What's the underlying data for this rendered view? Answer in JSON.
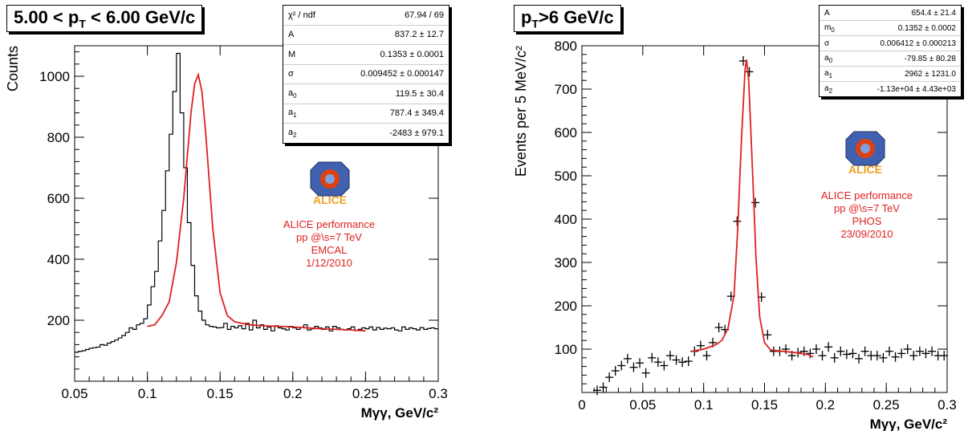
{
  "colors": {
    "hist": "#000000",
    "fit": "#e02020",
    "perf_text": "#e02020",
    "alice_logo": "#f0a020"
  },
  "left_panel": {
    "title_prefix": "5.00 < p",
    "title_sub": "T",
    "title_suffix": " < 6.00 GeV/c",
    "stats": [
      {
        "k": "χ² / ndf",
        "v": "67.94 / 69"
      },
      {
        "k": "A",
        "v": "837.2 ± 12.7"
      },
      {
        "k": "M",
        "v": "0.1353 ± 0.0001"
      },
      {
        "k": "σ",
        "v": "0.009452 ± 0.000147"
      },
      {
        "k": "a",
        "ks": "0",
        "v": "119.5 ± 30.4"
      },
      {
        "k": "a",
        "ks": "1",
        "v": "787.4 ± 349.4"
      },
      {
        "k": "a",
        "ks": "2",
        "v": "-2483 ± 979.1"
      }
    ],
    "logo_text": "ALICE",
    "perf": [
      "ALICE performance",
      "pp @\\s=7 TeV",
      "EMCAL",
      "1/12/2010"
    ]
  },
  "right_panel": {
    "title_prefix": "p",
    "title_sub": "T",
    "title_suffix": ">6 GeV/c",
    "stats": [
      {
        "k": "A",
        "v": "654.4 ± 21.4"
      },
      {
        "k": "m",
        "ks": "0",
        "v": "0.1352 ± 0.0002"
      },
      {
        "k": "σ",
        "v": "0.006412 ± 0.000213"
      },
      {
        "k": "a",
        "ks": "0",
        "v": "-79.85 ± 80.28"
      },
      {
        "k": "a",
        "ks": "1",
        "v": "2962 ± 1231.0"
      },
      {
        "k": "a",
        "ks": "2",
        "v": "-1.13e+04 ± 4.43e+03"
      }
    ],
    "logo_text": "ALICE",
    "perf": [
      "ALICE performance",
      "pp @\\s=7 TeV",
      "PHOS",
      "23/09/2010"
    ]
  },
  "chart_data": [
    {
      "type": "histogram",
      "xlabel": "Mγγ, GeV/c²",
      "ylabel": "Counts",
      "xlim": [
        0.05,
        0.3
      ],
      "ylim": [
        0,
        1100
      ],
      "xticks": [
        0.05,
        0.1,
        0.15,
        0.2,
        0.25,
        0.3
      ],
      "xticklabels": [
        "0.05",
        "0.1",
        "0.15",
        "0.2",
        "0.25",
        "0.3"
      ],
      "yticks": [
        200,
        400,
        600,
        800,
        1000
      ],
      "yticklabels": [
        "200",
        "400",
        "600",
        "800",
        "1000"
      ],
      "bin_width": 0.0025,
      "values": [
        95,
        98,
        100,
        104,
        108,
        110,
        112,
        120,
        118,
        125,
        130,
        135,
        142,
        150,
        160,
        175,
        170,
        185,
        190,
        205,
        250,
        310,
        360,
        460,
        560,
        690,
        810,
        950,
        1075,
        880,
        700,
        520,
        380,
        280,
        230,
        200,
        185,
        180,
        178,
        175,
        176,
        190,
        170,
        180,
        175,
        182,
        172,
        190,
        168,
        200,
        175,
        185,
        170,
        178,
        165,
        182,
        175,
        172,
        168,
        180,
        175,
        170,
        176,
        185,
        168,
        172,
        180,
        175,
        170,
        178,
        165,
        180,
        175,
        170,
        168,
        172,
        178,
        166,
        170,
        175,
        172,
        178,
        168,
        176,
        170,
        174,
        172,
        175,
        168,
        165,
        178,
        170,
        175,
        172,
        168,
        176,
        170,
        173,
        175,
        172
      ],
      "fit": {
        "name": "fit",
        "x_range": [
          0.1,
          0.25
        ],
        "x": [
          0.1,
          0.105,
          0.11,
          0.115,
          0.12,
          0.125,
          0.13,
          0.1325,
          0.135,
          0.1375,
          0.14,
          0.145,
          0.15,
          0.155,
          0.16,
          0.17,
          0.18,
          0.19,
          0.2,
          0.21,
          0.22,
          0.23,
          0.24,
          0.25
        ],
        "y": [
          180,
          185,
          215,
          260,
          390,
          600,
          880,
          975,
          1005,
          950,
          820,
          500,
          290,
          215,
          195,
          185,
          182,
          180,
          178,
          175,
          172,
          170,
          168,
          165
        ]
      }
    },
    {
      "type": "scatter",
      "xlabel": "Mγγ, GeV/c²",
      "ylabel": "Events per 5 MeV/c²",
      "xlim": [
        0,
        0.3
      ],
      "ylim": [
        0,
        800
      ],
      "xticks": [
        0,
        0.05,
        0.1,
        0.15,
        0.2,
        0.25,
        0.3
      ],
      "xticklabels": [
        "0",
        "0.05",
        "0.1",
        "0.15",
        "0.2",
        "0.25",
        "0.3"
      ],
      "yticks": [
        100,
        200,
        300,
        400,
        500,
        600,
        700,
        800
      ],
      "yticklabels": [
        "100",
        "200",
        "300",
        "400",
        "500",
        "600",
        "700",
        "800"
      ],
      "x": [
        0.0125,
        0.0175,
        0.0225,
        0.0275,
        0.0325,
        0.0375,
        0.0425,
        0.0475,
        0.0525,
        0.0575,
        0.0625,
        0.0675,
        0.0725,
        0.0775,
        0.0825,
        0.0875,
        0.0925,
        0.0975,
        0.1025,
        0.1075,
        0.1125,
        0.1175,
        0.1225,
        0.1275,
        0.1325,
        0.1375,
        0.1425,
        0.1475,
        0.1525,
        0.1575,
        0.1625,
        0.1675,
        0.1725,
        0.1775,
        0.1825,
        0.1875,
        0.1925,
        0.1975,
        0.2025,
        0.2075,
        0.2125,
        0.2175,
        0.2225,
        0.2275,
        0.2325,
        0.2375,
        0.2425,
        0.2475,
        0.2525,
        0.2575,
        0.2625,
        0.2675,
        0.2725,
        0.2775,
        0.2825,
        0.2875,
        0.2925,
        0.2975
      ],
      "y": [
        5,
        12,
        35,
        50,
        62,
        78,
        58,
        68,
        45,
        80,
        70,
        62,
        85,
        75,
        70,
        72,
        95,
        108,
        85,
        115,
        150,
        145,
        222,
        395,
        765,
        740,
        438,
        220,
        133,
        95,
        95,
        100,
        85,
        92,
        95,
        90,
        100,
        85,
        105,
        80,
        95,
        88,
        90,
        78,
        95,
        85,
        85,
        80,
        95,
        82,
        90,
        100,
        85,
        95,
        90,
        95,
        85,
        85
      ],
      "fit": {
        "name": "fit",
        "x_range": [
          0.09,
          0.19
        ],
        "x": [
          0.09,
          0.1,
          0.11,
          0.115,
          0.12,
          0.125,
          0.128,
          0.131,
          0.134,
          0.1352,
          0.137,
          0.14,
          0.143,
          0.146,
          0.15,
          0.155,
          0.165,
          0.175,
          0.185,
          0.19
        ],
        "y": [
          95,
          100,
          110,
          120,
          148,
          225,
          380,
          580,
          745,
          768,
          720,
          520,
          310,
          175,
          115,
          98,
          95,
          92,
          88,
          82
        ]
      }
    }
  ]
}
